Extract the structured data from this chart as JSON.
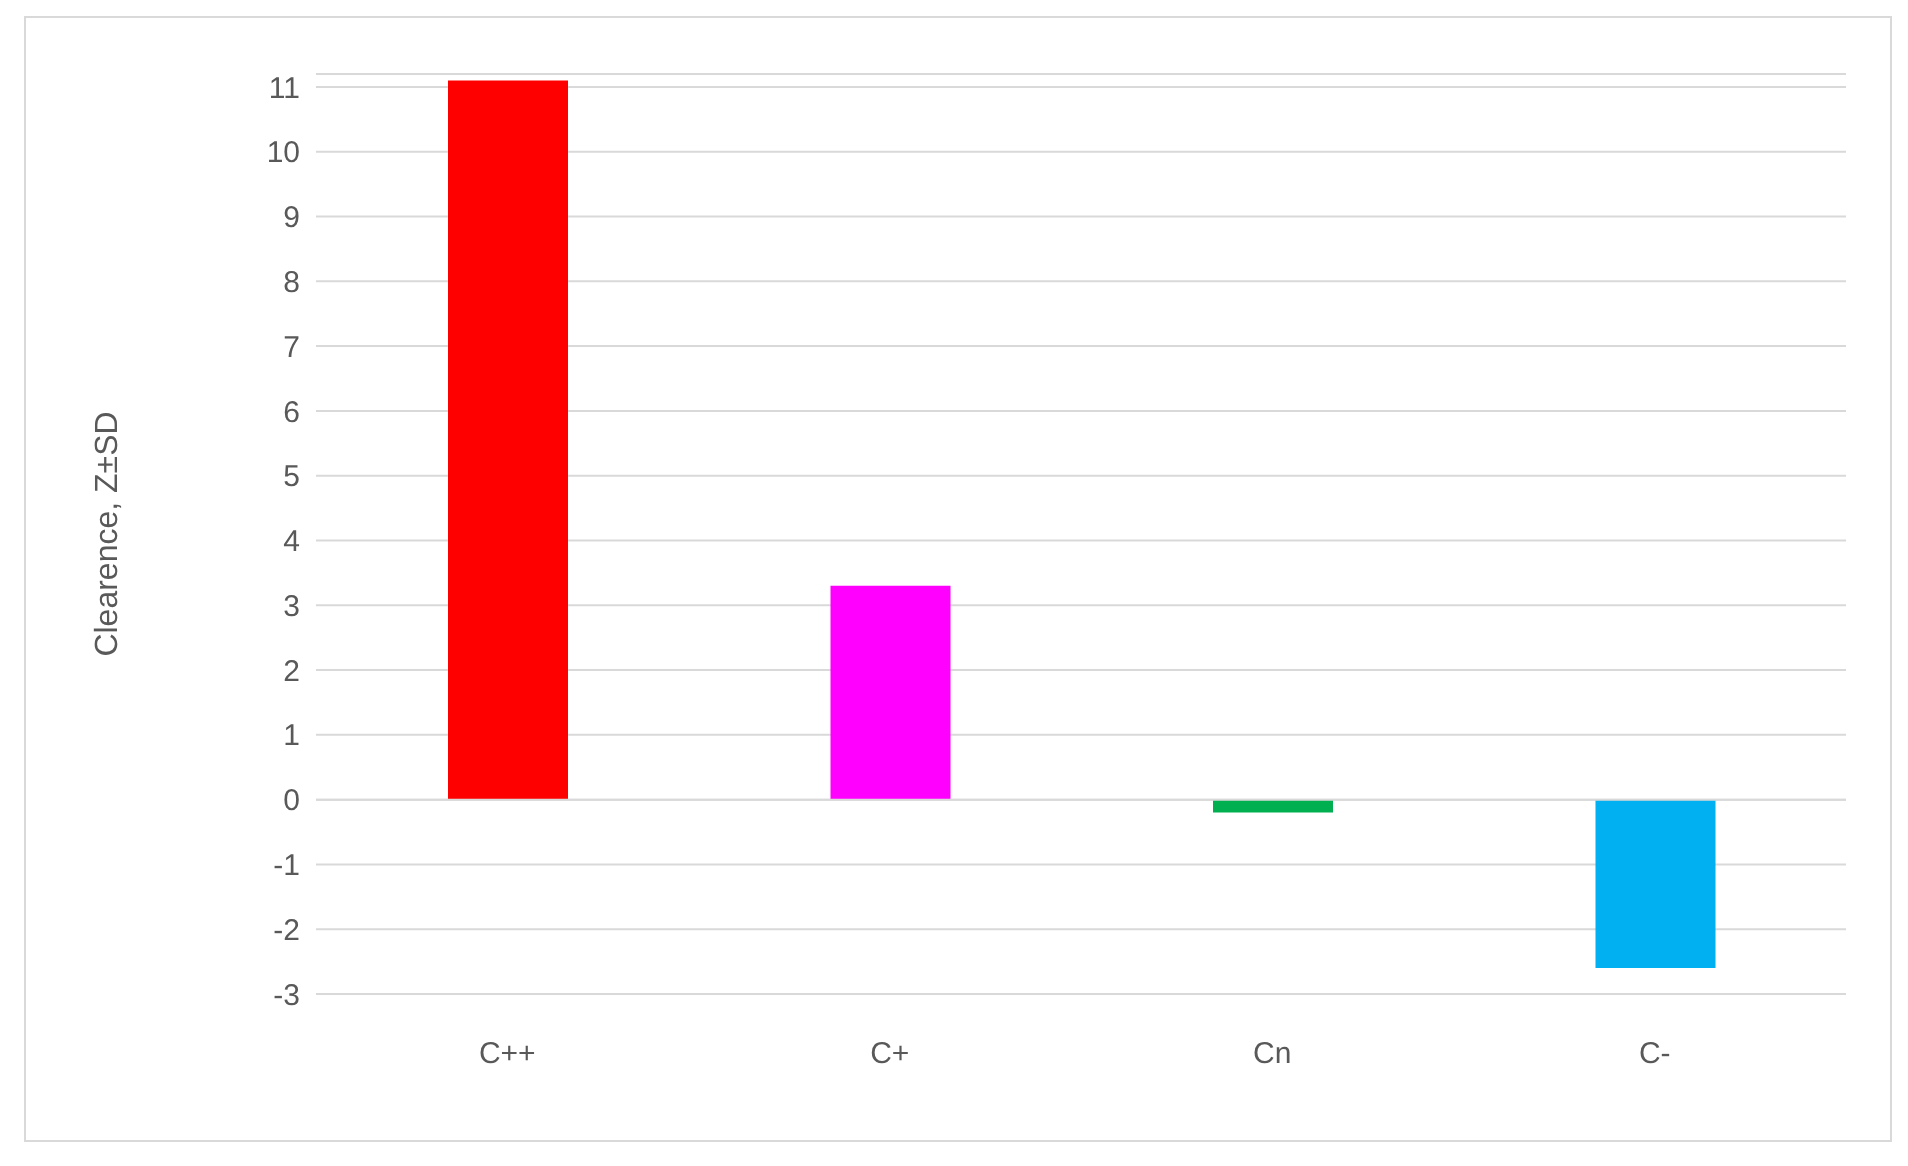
{
  "chart_data": {
    "type": "bar",
    "ylabel": "Clearence, Z±SD",
    "categories": [
      "C++",
      "C+",
      "Cn",
      "C-"
    ],
    "values": [
      11.1,
      3.3,
      -0.2,
      -2.6
    ],
    "colors": [
      "#ff0000",
      "#ff00ff",
      "#00b050",
      "#00b0f0"
    ],
    "ylim": [
      -3,
      11.2
    ],
    "yticks": [
      -3,
      -2,
      -1,
      0,
      1,
      2,
      3,
      4,
      5,
      6,
      7,
      8,
      9,
      10,
      11
    ],
    "grid": "y"
  }
}
